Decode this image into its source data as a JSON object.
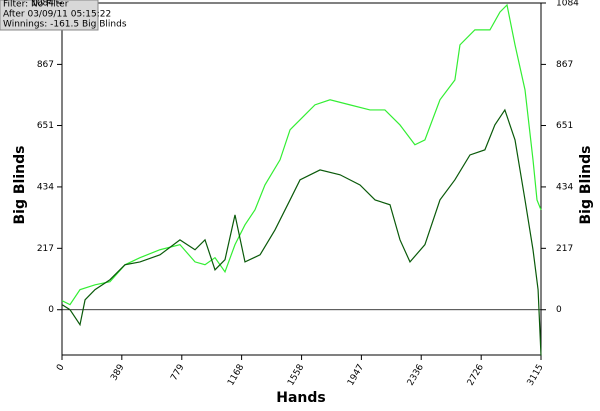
{
  "chart_data": {
    "type": "line",
    "annotations": [
      "Filter: No Filter",
      "After 03/09/11 05:15:22",
      "Winnings: -161.5 Big Blinds"
    ],
    "xlabel": "Hands",
    "ylabel": "Big Blinds",
    "y2label": "Big Blinds",
    "xlim": [
      0,
      3115
    ],
    "xticks": [
      0,
      389,
      779,
      1168,
      1558,
      1947,
      2336,
      2726,
      3115
    ],
    "ylim": [
      -160,
      1084
    ],
    "yticks": [
      0,
      217,
      434,
      651,
      867,
      1084
    ],
    "y2lim": [
      -160,
      1084
    ],
    "y2ticks": [
      0,
      217,
      434,
      651,
      867,
      1084
    ],
    "zero_line": true,
    "series": [
      {
        "color": "#33ee33",
        "x": [
          0,
          52,
          117,
          215,
          312,
          410,
          507,
          637,
          767,
          865,
          930,
          995,
          1060,
          1125,
          1190,
          1255,
          1320,
          1418,
          1483,
          1548,
          1645,
          1743,
          1873,
          2003,
          2100,
          2198,
          2295,
          2360,
          2458,
          2555,
          2588,
          2685,
          2783,
          2848,
          2894,
          2946,
          3011,
          3063,
          3089,
          3115
        ],
        "values": [
          32,
          18,
          71,
          88,
          99,
          159,
          184,
          212,
          230,
          169,
          159,
          184,
          134,
          230,
          300,
          353,
          441,
          530,
          636,
          671,
          724,
          742,
          724,
          706,
          706,
          653,
          583,
          600,
          742,
          812,
          936,
          989,
          989,
          1052,
          1077,
          936,
          777,
          530,
          388,
          353
        ]
      },
      {
        "color": "#0a5a0a",
        "x": [
          0,
          52,
          117,
          150,
          215,
          312,
          410,
          507,
          637,
          767,
          865,
          930,
          995,
          1060,
          1125,
          1190,
          1288,
          1385,
          1483,
          1548,
          1678,
          1808,
          1938,
          2036,
          2133,
          2198,
          2263,
          2360,
          2458,
          2555,
          2653,
          2750,
          2815,
          2880,
          2946,
          3011,
          3063,
          3096,
          3115
        ],
        "values": [
          18,
          0,
          -53,
          35,
          71,
          106,
          159,
          169,
          194,
          247,
          212,
          247,
          141,
          177,
          335,
          169,
          194,
          282,
          388,
          459,
          494,
          477,
          441,
          388,
          371,
          247,
          169,
          230,
          388,
          459,
          547,
          565,
          653,
          706,
          600,
          388,
          212,
          71,
          -161.5
        ]
      }
    ]
  }
}
